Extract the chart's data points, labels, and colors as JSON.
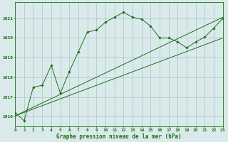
{
  "bg_color": "#daeaea",
  "grid_color": "#b0cccc",
  "line_color": "#1a6e1a",
  "marker_color": "#1a6e1a",
  "xlabel": "Graphe pression niveau de la mer (hPa)",
  "xlim": [
    0,
    23
  ],
  "ylim": [
    1015.5,
    1021.8
  ],
  "yticks": [
    1016,
    1017,
    1018,
    1019,
    1020,
    1021
  ],
  "xticks": [
    0,
    1,
    2,
    3,
    4,
    5,
    6,
    7,
    8,
    9,
    10,
    11,
    12,
    13,
    14,
    15,
    16,
    17,
    18,
    19,
    20,
    21,
    22,
    23
  ],
  "series1_x": [
    0,
    1,
    2,
    3,
    4,
    5,
    6,
    7,
    8,
    9,
    10,
    11,
    12,
    13,
    14,
    15,
    16,
    17,
    18,
    19,
    20,
    21,
    22,
    23
  ],
  "series1_y": [
    1016.2,
    1015.8,
    1017.5,
    1017.6,
    1018.6,
    1017.2,
    1018.3,
    1019.3,
    1020.3,
    1020.4,
    1020.8,
    1021.05,
    1021.3,
    1021.05,
    1020.95,
    1020.6,
    1020.0,
    1020.0,
    1019.8,
    1019.5,
    1019.8,
    1020.05,
    1020.5,
    1021.0
  ],
  "series2_x": [
    0,
    23
  ],
  "series2_y": [
    1016.05,
    1021.05
  ],
  "series3_x": [
    0,
    23
  ],
  "series3_y": [
    1016.05,
    1020.0
  ]
}
